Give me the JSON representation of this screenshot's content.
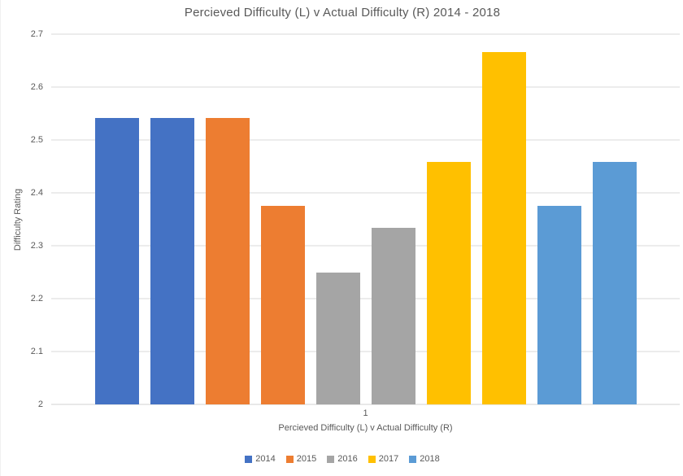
{
  "chart_data": {
    "type": "bar",
    "title": "Percieved Difficulty (L) v Actual Difficulty (R) 2014 - 2018",
    "xlabel": "Percieved Difficulty (L) v Actual Difficulty (R)",
    "ylabel": "Difficulty Rating",
    "category_label": "1",
    "ylim": [
      2,
      2.7
    ],
    "yticks": [
      "2.7",
      "2.6",
      "2.5",
      "2.4",
      "2.3",
      "2.2",
      "2.1",
      "2"
    ],
    "grid": true,
    "legend_position": "bottom",
    "value_meaning": [
      "Percieved (L)",
      "Actual (R)"
    ],
    "series": [
      {
        "name": "2014",
        "color": "#4472C4",
        "values": [
          2.5417,
          2.5417
        ]
      },
      {
        "name": "2015",
        "color": "#ED7D31",
        "values": [
          2.5417,
          2.375
        ]
      },
      {
        "name": "2016",
        "color": "#A5A5A5",
        "values": [
          2.25,
          2.3333
        ]
      },
      {
        "name": "2017",
        "color": "#FFC000",
        "values": [
          2.4583,
          2.6667
        ]
      },
      {
        "name": "2018",
        "color": "#5B9BD5",
        "values": [
          2.375,
          2.4583
        ]
      }
    ],
    "colors": {
      "text": "#595959",
      "gridline": "#D9D9D9",
      "background": "#FFFFFF"
    }
  }
}
